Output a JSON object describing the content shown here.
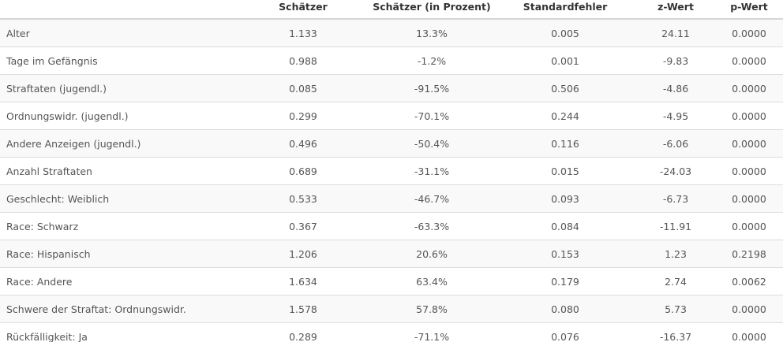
{
  "table": {
    "headers": [
      "",
      "Schätzer",
      "Schätzer (in Prozent)",
      "Standardfehler",
      "z-Wert",
      "p-Wert"
    ],
    "rows": [
      [
        "Alter",
        "1.133",
        "13.3%",
        "0.005",
        "24.11",
        "0.0000"
      ],
      [
        "Tage im Gefängnis",
        "0.988",
        "-1.2%",
        "0.001",
        "-9.83",
        "0.0000"
      ],
      [
        "Straftaten (jugendl.)",
        "0.085",
        "-91.5%",
        "0.506",
        "-4.86",
        "0.0000"
      ],
      [
        "Ordnungswidr. (jugendl.)",
        "0.299",
        "-70.1%",
        "0.244",
        "-4.95",
        "0.0000"
      ],
      [
        "Andere Anzeigen (jugendl.)",
        "0.496",
        "-50.4%",
        "0.116",
        "-6.06",
        "0.0000"
      ],
      [
        "Anzahl Straftaten",
        "0.689",
        "-31.1%",
        "0.015",
        "-24.03",
        "0.0000"
      ],
      [
        "Geschlecht: Weiblich",
        "0.533",
        "-46.7%",
        "0.093",
        "-6.73",
        "0.0000"
      ],
      [
        "Race: Schwarz",
        "0.367",
        "-63.3%",
        "0.084",
        "-11.91",
        "0.0000"
      ],
      [
        "Race: Hispanisch",
        "1.206",
        "20.6%",
        "0.153",
        "1.23",
        "0.2198"
      ],
      [
        "Race: Andere",
        "1.634",
        "63.4%",
        "0.179",
        "2.74",
        "0.0062"
      ],
      [
        "Schwere der Straftat: Ordnungswidr.",
        "1.578",
        "57.8%",
        "0.080",
        "5.73",
        "0.0000"
      ],
      [
        "Rückfälligkeit: Ja",
        "0.289",
        "-71.1%",
        "0.076",
        "-16.37",
        "0.0000"
      ]
    ]
  }
}
